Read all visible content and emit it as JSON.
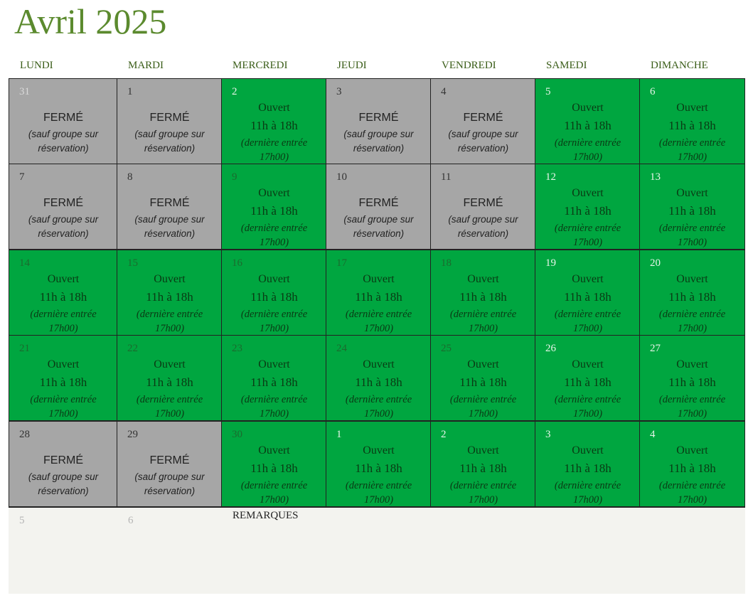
{
  "title": "Avril 2025",
  "weekdays": [
    "LUNDI",
    "MARDI",
    "MERCREDI",
    "JEUDI",
    "VENDREDI",
    "SAMEDI",
    "DIMANCHE"
  ],
  "labels": {
    "closed": "FERMÉ",
    "closed_note_line1": "(sauf groupe sur",
    "closed_note_line2": "réservation)",
    "open": "Ouvert",
    "open_hours": "11h à 18h",
    "open_note_line1": "(dernière entrée",
    "open_note_line2": "17h00)"
  },
  "weeks": [
    [
      {
        "day": "31",
        "status": "closed",
        "other_month": true
      },
      {
        "day": "1",
        "status": "closed",
        "other_month": false
      },
      {
        "day": "2",
        "status": "open",
        "other_month": false
      },
      {
        "day": "3",
        "status": "closed",
        "other_month": false
      },
      {
        "day": "4",
        "status": "closed",
        "other_month": false
      },
      {
        "day": "5",
        "status": "open",
        "other_month": false
      },
      {
        "day": "6",
        "status": "open",
        "other_month": false
      }
    ],
    [
      {
        "day": "7",
        "status": "closed",
        "other_month": false
      },
      {
        "day": "8",
        "status": "closed",
        "other_month": false
      },
      {
        "day": "9",
        "status": "open",
        "other_month": false
      },
      {
        "day": "10",
        "status": "closed",
        "other_month": false
      },
      {
        "day": "11",
        "status": "closed",
        "other_month": false
      },
      {
        "day": "12",
        "status": "open",
        "other_month": false
      },
      {
        "day": "13",
        "status": "open",
        "other_month": false
      }
    ],
    [
      {
        "day": "14",
        "status": "open",
        "other_month": false
      },
      {
        "day": "15",
        "status": "open",
        "other_month": false
      },
      {
        "day": "16",
        "status": "open",
        "other_month": false
      },
      {
        "day": "17",
        "status": "open",
        "other_month": false
      },
      {
        "day": "18",
        "status": "open",
        "other_month": false
      },
      {
        "day": "19",
        "status": "open",
        "other_month": false
      },
      {
        "day": "20",
        "status": "open",
        "other_month": false
      }
    ],
    [
      {
        "day": "21",
        "status": "open",
        "other_month": false
      },
      {
        "day": "22",
        "status": "open",
        "other_month": false
      },
      {
        "day": "23",
        "status": "open",
        "other_month": false
      },
      {
        "day": "24",
        "status": "open",
        "other_month": false
      },
      {
        "day": "25",
        "status": "open",
        "other_month": false
      },
      {
        "day": "26",
        "status": "open",
        "other_month": false
      },
      {
        "day": "27",
        "status": "open",
        "other_month": false
      }
    ],
    [
      {
        "day": "28",
        "status": "closed",
        "other_month": false
      },
      {
        "day": "29",
        "status": "closed",
        "other_month": false
      },
      {
        "day": "30",
        "status": "open",
        "other_month": false
      },
      {
        "day": "1",
        "status": "open",
        "other_month": true
      },
      {
        "day": "2",
        "status": "open",
        "other_month": true
      },
      {
        "day": "3",
        "status": "open",
        "other_month": true
      },
      {
        "day": "4",
        "status": "open",
        "other_month": true
      }
    ]
  ],
  "trailing_days": [
    "5",
    "6"
  ],
  "remarks_label": "REMARQUES",
  "colors": {
    "title": "#5b8a2e",
    "weekday": "#3a5d18",
    "closed_bg": "#a6a6a6",
    "open_bg": "#00a640",
    "bottom_bg": "#f3f3ef"
  }
}
